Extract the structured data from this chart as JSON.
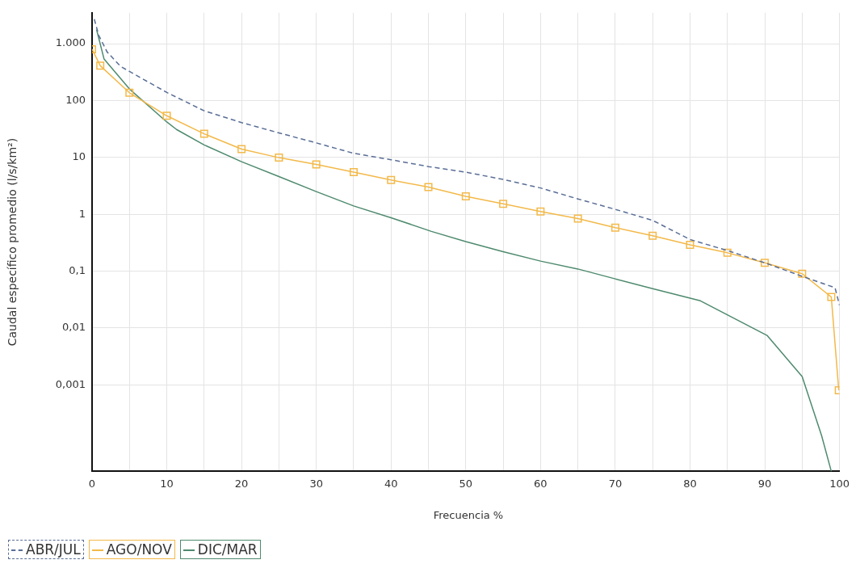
{
  "chart_data": {
    "type": "line",
    "xlabel": "Frecuencia %",
    "ylabel": "Caudal específico promedio (l/s/km²)",
    "log": "y",
    "grid": true,
    "legend": "bottom left",
    "xlim": [
      0,
      100
    ],
    "xticks": [
      0,
      {
        "value": 5,
        "label": null
      },
      10,
      {
        "value": 15,
        "label": null
      },
      20,
      {
        "value": 25,
        "label": null
      },
      30,
      {
        "value": 35,
        "label": null
      },
      40,
      {
        "value": 45,
        "label": null
      },
      50,
      {
        "value": 55,
        "label": null
      },
      60,
      {
        "value": 65,
        "label": null
      },
      70,
      {
        "value": 75,
        "label": null
      },
      80,
      {
        "value": 85,
        "label": null
      },
      90,
      {
        "value": 95,
        "label": null
      },
      100
    ],
    "ylim": [
      3e-05,
      3500
    ],
    "yticks": [
      {
        "value": 0.001,
        "label": "0,001"
      },
      {
        "value": 0.01,
        "label": "0,01"
      },
      {
        "value": 0.1,
        "label": "0,1"
      },
      1,
      10,
      100,
      {
        "value": 1000,
        "label": "1.000"
      }
    ],
    "series": [
      {
        "name": "ABR/JUL",
        "color": "#5a6e96",
        "line_style": "dashed",
        "marker": "none",
        "x": [
          0.3,
          0.9,
          2,
          3.8,
          5,
          10,
          15,
          20,
          25,
          30,
          35,
          40,
          45,
          50,
          55,
          60,
          65,
          70,
          75,
          80,
          85,
          90,
          95,
          99.4,
          100
        ],
        "values": [
          2700,
          1400,
          720,
          400,
          325,
          139,
          66,
          41,
          27,
          18,
          11.8,
          9.1,
          6.9,
          5.5,
          4.1,
          2.9,
          1.86,
          1.22,
          0.78,
          0.36,
          0.23,
          0.14,
          0.081,
          0.051,
          0.025
        ]
      },
      {
        "name": "AGO/NOV",
        "color": "#f3b94a",
        "line_style": "solid",
        "marker": "square",
        "x": [
          0,
          1.1,
          5,
          10,
          15,
          20,
          25,
          30,
          35,
          40,
          45,
          50,
          55,
          60,
          65,
          70,
          75,
          80,
          85,
          90,
          95,
          98.9,
          99.9
        ],
        "values": [
          800,
          410,
          137,
          54,
          26,
          14,
          9.9,
          7.5,
          5.5,
          4,
          3,
          2.06,
          1.53,
          1.12,
          0.84,
          0.58,
          0.42,
          0.29,
          0.21,
          0.14,
          0.09,
          0.035,
          0.0008
        ]
      },
      {
        "name": "DIC/MAR",
        "color": "#4e8a6e",
        "line_style": "solid",
        "marker": "none",
        "x": [
          0.6,
          1.6,
          5,
          10,
          11.3,
          15,
          20,
          25,
          30,
          35,
          40,
          45.4,
          50,
          55,
          60,
          65,
          70,
          75,
          81.4,
          90.3,
          95,
          97.6,
          98.9
        ],
        "values": [
          1780,
          540,
          160,
          42,
          31,
          16.6,
          8.4,
          4.6,
          2.5,
          1.4,
          0.87,
          0.5,
          0.33,
          0.22,
          0.15,
          0.109,
          0.073,
          0.049,
          0.03,
          0.0074,
          0.0014,
          0.000128,
          3e-05
        ]
      }
    ]
  }
}
